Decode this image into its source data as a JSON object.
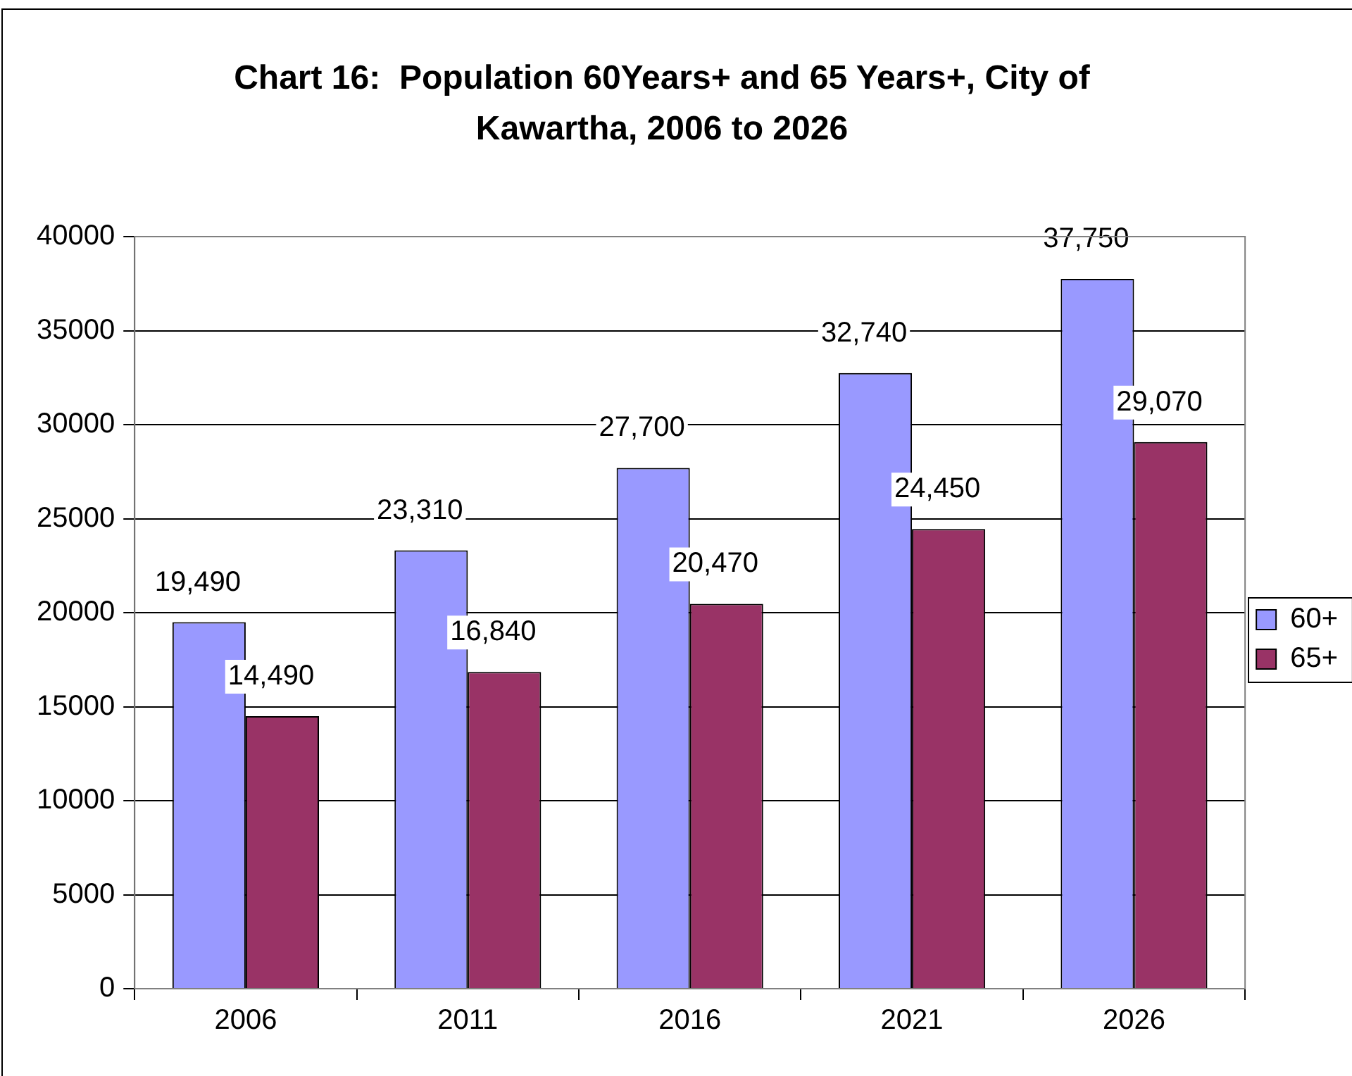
{
  "chart_data": {
    "type": "bar",
    "title": "Chart 16:  Population 60Years+ and 65 Years+, City of Kawartha, 2006 to 2026",
    "categories": [
      "2006",
      "2011",
      "2016",
      "2021",
      "2026"
    ],
    "series": [
      {
        "name": "60+",
        "color": "#9999ff",
        "values": [
          19490,
          23310,
          27700,
          32740,
          37750
        ],
        "value_labels": [
          "19,490",
          "23,310",
          "27,700",
          "32,740",
          "37,750"
        ]
      },
      {
        "name": "65+",
        "color": "#993366",
        "values": [
          14490,
          16840,
          20470,
          24450,
          29070
        ],
        "value_labels": [
          "14,490",
          "16,840",
          "20,470",
          "24,450",
          "29,070"
        ]
      }
    ],
    "ylim": [
      0,
      40000
    ],
    "yticks": [
      0,
      5000,
      10000,
      15000,
      20000,
      25000,
      30000,
      35000,
      40000
    ],
    "grid": "y",
    "legend": "right"
  }
}
